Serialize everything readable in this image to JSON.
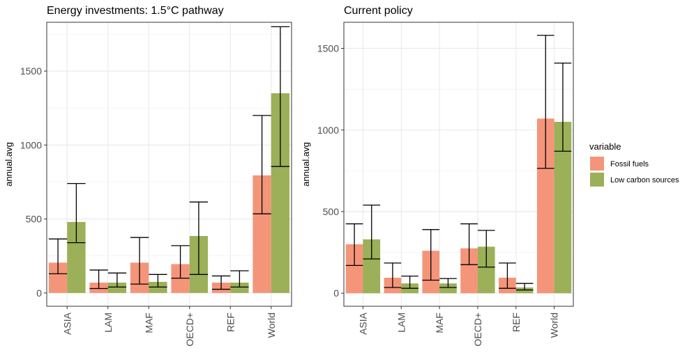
{
  "chart_data": [
    {
      "type": "bar",
      "title": "Energy investments: 1.5°C pathway",
      "xlabel": "",
      "ylabel": "annual.avg",
      "ylim": [
        -90,
        1830
      ],
      "yticks": [
        0,
        500,
        1000,
        1500
      ],
      "grid": true,
      "categories": [
        "ASIA",
        "LAM",
        "MAF",
        "OECD+",
        "REF",
        "World"
      ],
      "series": [
        {
          "name": "Fossil fuels",
          "values": [
            205,
            70,
            205,
            195,
            70,
            795
          ],
          "error_low": [
            130,
            30,
            60,
            100,
            25,
            535
          ],
          "error_high": [
            365,
            155,
            375,
            320,
            115,
            1200
          ]
        },
        {
          "name": "Low carbon sources",
          "values": [
            480,
            70,
            75,
            385,
            70,
            1350
          ],
          "error_low": [
            340,
            40,
            40,
            125,
            40,
            855
          ],
          "error_high": [
            740,
            135,
            125,
            615,
            150,
            1800
          ]
        }
      ]
    },
    {
      "type": "bar",
      "title": "Current policy",
      "xlabel": "",
      "ylabel": "annual.avg",
      "ylim": [
        -80,
        1660
      ],
      "yticks": [
        0,
        500,
        1000,
        1500
      ],
      "grid": true,
      "categories": [
        "ASIA",
        "LAM",
        "MAF",
        "OECD+",
        "REF",
        "World"
      ],
      "series": [
        {
          "name": "Fossil fuels",
          "values": [
            300,
            95,
            260,
            275,
            95,
            1070
          ],
          "error_low": [
            170,
            35,
            80,
            175,
            30,
            765
          ],
          "error_high": [
            425,
            185,
            390,
            425,
            185,
            1580
          ]
        },
        {
          "name": "Low carbon sources",
          "values": [
            330,
            60,
            60,
            285,
            35,
            1050
          ],
          "error_low": [
            210,
            30,
            35,
            160,
            20,
            870
          ],
          "error_high": [
            540,
            105,
            90,
            385,
            60,
            1410
          ]
        }
      ]
    }
  ],
  "legend": {
    "title": "variable",
    "position": "right",
    "items": [
      {
        "label": "Fossil fuels",
        "color": "#F4957A"
      },
      {
        "label": "Low carbon sources",
        "color": "#9BB058"
      }
    ]
  },
  "colors": {
    "fossil": "#F4957A",
    "low_carbon": "#9BB058",
    "grid": "#EBEBEB",
    "panel_border": "#333333"
  }
}
